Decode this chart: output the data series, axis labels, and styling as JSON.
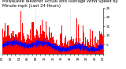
{
  "title": "Milwaukee Weather Actual and Average Wind Speed by Minute mph (Last 24 Hours)",
  "bar_color": "#ff0000",
  "line_color": "#0000ff",
  "background_color": "#ffffff",
  "plot_bg_color": "#ffffff",
  "ylim": [
    0,
    25
  ],
  "yticks": [
    5,
    10,
    15,
    20,
    25
  ],
  "ytick_labels": [
    "5",
    "10",
    "15",
    "20",
    "25"
  ],
  "n_points": 1440,
  "seed": 42,
  "title_fontsize": 3.8,
  "tick_fontsize": 3.0,
  "grid_color": "#bbbbbb",
  "n_gridlines": 2,
  "avg_wind_base": 6,
  "actual_wind_base": 8
}
